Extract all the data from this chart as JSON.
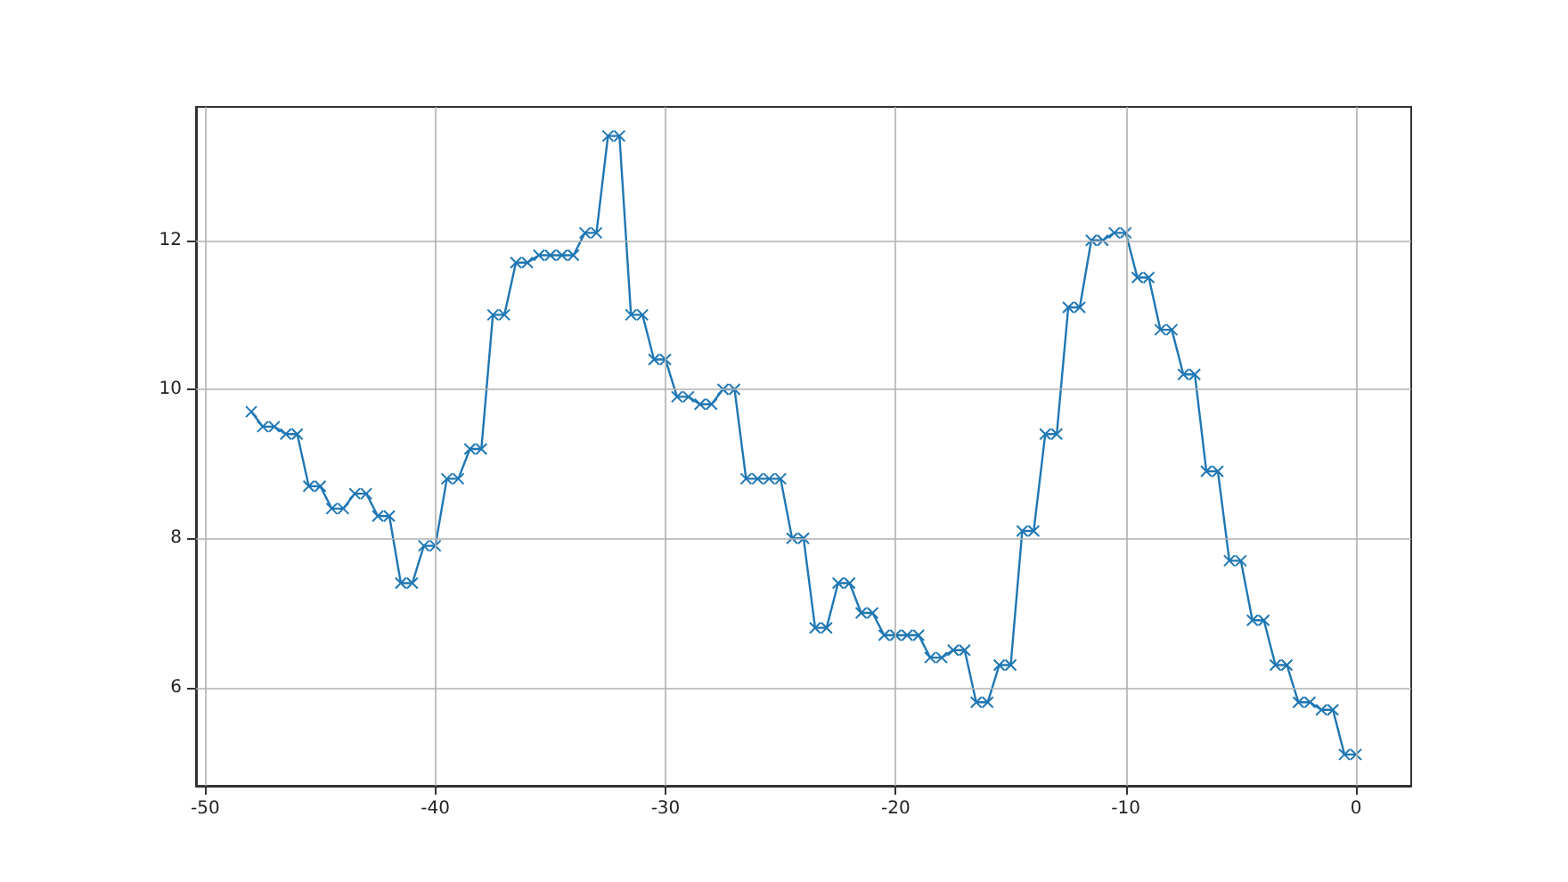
{
  "chart_data": {
    "type": "line",
    "x": [
      -48,
      -47.5,
      -47,
      -46.5,
      -46,
      -45.5,
      -45,
      -44.5,
      -44,
      -43.5,
      -43,
      -42.5,
      -42,
      -41.5,
      -41,
      -40.5,
      -40,
      -39.5,
      -39,
      -38.5,
      -38,
      -37.5,
      -37,
      -36.5,
      -36,
      -35.5,
      -35,
      -34.5,
      -34,
      -33.5,
      -33,
      -32.5,
      -32,
      -31.5,
      -31,
      -30.5,
      -30,
      -29.5,
      -29,
      -28.5,
      -28,
      -27.5,
      -27,
      -26.5,
      -26,
      -25.5,
      -25,
      -24.5,
      -24,
      -23.5,
      -23,
      -22.5,
      -22,
      -21.5,
      -21,
      -20.5,
      -20,
      -19.5,
      -19,
      -18.5,
      -18,
      -17.5,
      -17,
      -16.5,
      -16,
      -15.5,
      -15,
      -14.5,
      -14,
      -13.5,
      -13,
      -12.5,
      -12,
      -11.5,
      -11,
      -10.5,
      -10,
      -9.5,
      -9,
      -8.5,
      -8,
      -7.5,
      -7,
      -6.5,
      -6,
      -5.5,
      -5,
      -4.5,
      -4,
      -3.5,
      -3,
      -2.5,
      -2,
      -1.5,
      -1,
      -0.5,
      0
    ],
    "series": [
      {
        "color": "#1f77b4",
        "values": [
          9.7,
          9.5,
          9.5,
          9.4,
          9.4,
          8.7,
          8.7,
          8.4,
          8.4,
          8.6,
          8.6,
          8.3,
          8.3,
          7.4,
          7.4,
          7.9,
          7.9,
          8.8,
          8.8,
          9.2,
          9.2,
          11.0,
          11.0,
          11.7,
          11.7,
          11.8,
          11.8,
          11.8,
          11.8,
          12.1,
          12.1,
          13.4,
          13.4,
          11.0,
          11.0,
          10.4,
          10.4,
          9.9,
          9.9,
          9.8,
          9.8,
          10.0,
          10.0,
          8.8,
          8.8,
          8.8,
          8.8,
          8.0,
          8.0,
          6.8,
          6.8,
          7.4,
          7.4,
          7.0,
          7.0,
          6.7,
          6.7,
          6.7,
          6.7,
          6.4,
          6.4,
          6.5,
          6.5,
          5.8,
          5.8,
          6.3,
          6.3,
          8.1,
          8.1,
          9.4,
          9.4,
          11.1,
          11.1,
          12.0,
          12.0,
          12.1,
          12.1,
          11.5,
          11.5,
          10.8,
          10.8,
          10.2,
          10.2,
          8.9,
          8.9,
          7.7,
          7.7,
          6.9,
          6.9,
          6.3,
          6.3,
          5.8,
          5.8,
          5.7,
          5.7,
          5.1,
          5.1
        ]
      }
    ],
    "xlim": [
      -50.4,
      2.4
    ],
    "xticks": [
      -50,
      -40,
      -30,
      -20,
      -10,
      0
    ],
    "ylim": [
      4.68,
      13.79
    ],
    "yticks": [
      6,
      8,
      10,
      12
    ],
    "grid": true,
    "marker": "cross",
    "line_style": "solid"
  }
}
